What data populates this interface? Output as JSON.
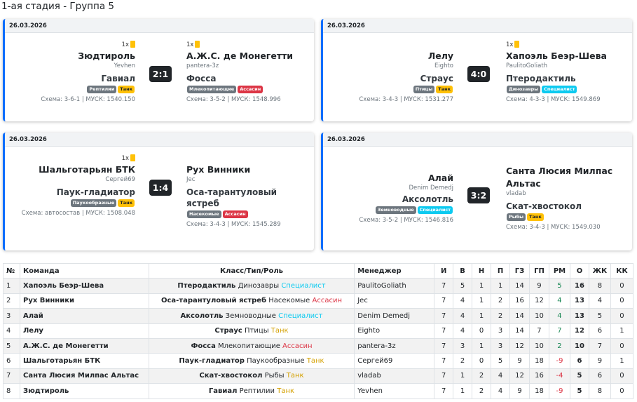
{
  "page_title": "1-ая стадия - Группа 5",
  "matches": [
    {
      "date": "26.03.2026",
      "home": {
        "cards": "1x",
        "team": "Зюдтироль",
        "manager": "Yevhen",
        "animal": "Гавиал",
        "badge_type": "Рептилии",
        "badge_role": "Танк",
        "schema": "Схема: 3-6-1 | МУСК: 1540.150"
      },
      "away": {
        "cards": "1x",
        "team": "А.Ж.С. де Монегетти",
        "manager": "pantera-3z",
        "animal": "Фосса",
        "badge_type": "Млекопитающие",
        "badge_role": "Ассасин",
        "schema": "Схема: 3-5-2 | МУСК: 1548.996"
      },
      "score": "2:1"
    },
    {
      "date": "26.03.2026",
      "home": {
        "cards": "",
        "team": "Лелу",
        "manager": "Eighto",
        "animal": "Страус",
        "badge_type": "Птицы",
        "badge_role": "Танк",
        "schema": "Схема: 3-4-3 | МУСК: 1531.277"
      },
      "away": {
        "cards": "1x",
        "team": "Хапоэль Беэр-Шева",
        "manager": "PaulitoGoliath",
        "animal": "Птеродактиль",
        "badge_type": "Динозавры",
        "badge_role": "Специалист",
        "schema": "Схема: 4-3-3 | МУСК: 1549.869"
      },
      "score": "4:0"
    },
    {
      "date": "26.03.2026",
      "home": {
        "cards": "1x",
        "team": "Шальготарьян БТК",
        "manager": "Сергей69",
        "animal": "Паук-гладиатор",
        "badge_type": "Паукообразные",
        "badge_role": "Танк",
        "schema": "Схема: автосостав | МУСК: 1508.048"
      },
      "away": {
        "cards": "",
        "team": "Рух Винники",
        "manager": "Jec",
        "animal": "Оса-тарантуловый ястреб",
        "badge_type": "Насекомые",
        "badge_role": "Ассасин",
        "schema": "Схема: 3-4-3 | МУСК: 1545.289"
      },
      "score": "1:4"
    },
    {
      "date": "26.03.2026",
      "home": {
        "cards": "",
        "team": "Алай",
        "manager": "Denim Demedj",
        "animal": "Аксолотль",
        "badge_type": "Земноводные",
        "badge_role": "Специалист",
        "schema": "Схема: 3-5-2 | МУСК: 1546.816"
      },
      "away": {
        "cards": "",
        "team": "Санта Люсия Милпас Альтас",
        "manager": "vladab",
        "animal": "Скат-хвостокол",
        "badge_type": "Рыбы",
        "badge_role": "Танк",
        "schema": "Схема: 3-4-3 | МУСК: 1549.030"
      },
      "score": "3:2"
    }
  ],
  "table": {
    "headers": [
      "№",
      "Команда",
      "Класс/Тип/Роль",
      "Менеджер",
      "И",
      "В",
      "Н",
      "П",
      "ГЗ",
      "ГП",
      "РМ",
      "О",
      "ЖК",
      "КК"
    ],
    "rows": [
      {
        "n": "1",
        "team": "Хапоэль Беэр-Шева",
        "animal": "Птеродактиль",
        "type": "Динозавры",
        "role": "Специалист",
        "manager": "PaulitoGoliath",
        "i": "7",
        "v": "5",
        "d": "1",
        "l": "1",
        "gz": "14",
        "gp": "9",
        "rm": "5",
        "o": "16",
        "yk": "8",
        "kk": "0"
      },
      {
        "n": "2",
        "team": "Рух Винники",
        "animal": "Оса-тарантуловый ястреб",
        "type": "Насекомые",
        "role": "Ассасин",
        "manager": "Jec",
        "i": "7",
        "v": "4",
        "d": "1",
        "l": "2",
        "gz": "16",
        "gp": "12",
        "rm": "4",
        "o": "13",
        "yk": "4",
        "kk": "0"
      },
      {
        "n": "3",
        "team": "Алай",
        "animal": "Аксолотль",
        "type": "Земноводные",
        "role": "Специалист",
        "manager": "Denim Demedj",
        "i": "7",
        "v": "4",
        "d": "1",
        "l": "2",
        "gz": "14",
        "gp": "10",
        "rm": "4",
        "o": "13",
        "yk": "5",
        "kk": "0"
      },
      {
        "n": "4",
        "team": "Лелу",
        "animal": "Страус",
        "type": "Птицы",
        "role": "Танк",
        "manager": "Eighto",
        "i": "7",
        "v": "4",
        "d": "0",
        "l": "3",
        "gz": "14",
        "gp": "7",
        "rm": "7",
        "o": "12",
        "yk": "6",
        "kk": "1"
      },
      {
        "n": "5",
        "team": "А.Ж.С. де Монегетти",
        "animal": "Фосса",
        "type": "Млекопитающие",
        "role": "Ассасин",
        "manager": "pantera-3z",
        "i": "7",
        "v": "3",
        "d": "1",
        "l": "3",
        "gz": "12",
        "gp": "10",
        "rm": "2",
        "o": "10",
        "yk": "7",
        "kk": "0"
      },
      {
        "n": "6",
        "team": "Шальготарьян БТК",
        "animal": "Паук-гладиатор",
        "type": "Паукообразные",
        "role": "Танк",
        "manager": "Сергей69",
        "i": "7",
        "v": "2",
        "d": "0",
        "l": "5",
        "gz": "9",
        "gp": "18",
        "rm": "-9",
        "o": "6",
        "yk": "9",
        "kk": "1"
      },
      {
        "n": "7",
        "team": "Санта Люсия Милпас Альтас",
        "animal": "Скат-хвостокол",
        "type": "Рыбы",
        "role": "Танк",
        "manager": "vladab",
        "i": "7",
        "v": "1",
        "d": "2",
        "l": "4",
        "gz": "12",
        "gp": "16",
        "rm": "-4",
        "o": "5",
        "yk": "6",
        "kk": "0"
      },
      {
        "n": "8",
        "team": "Зюдтироль",
        "animal": "Гавиал",
        "type": "Рептилии",
        "role": "Танк",
        "manager": "Yevhen",
        "i": "7",
        "v": "1",
        "d": "2",
        "l": "4",
        "gz": "9",
        "gp": "18",
        "rm": "-9",
        "o": "5",
        "yk": "8",
        "kk": "0"
      }
    ]
  },
  "colors": {
    "accent": "#0d6efd",
    "tank": "#ffc107",
    "specialist": "#0dcaf0",
    "assassin": "#dc3545",
    "type": "#6c757d"
  },
  "icons": {
    "yellow_card": "yellow-card-icon"
  }
}
